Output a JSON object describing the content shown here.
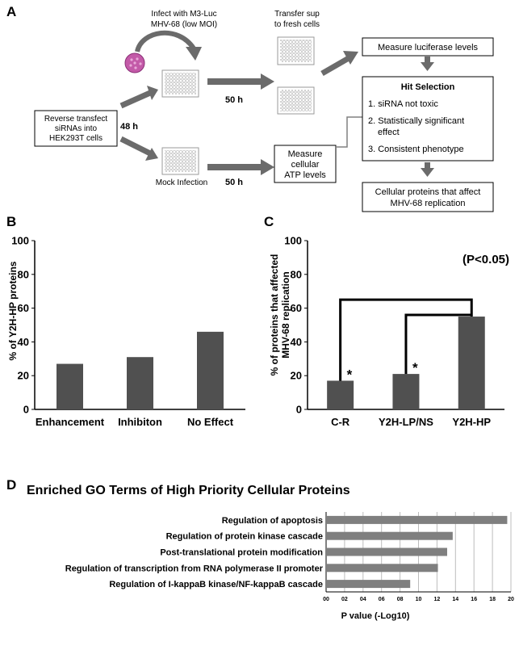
{
  "panel_labels": {
    "a": "A",
    "b": "B",
    "c": "C",
    "d": "D"
  },
  "workflow": {
    "infect_label_1": "Infect with M3-Luc",
    "infect_label_2": "MHV-68 (low MOI)",
    "transfer_label_1": "Transfer sup",
    "transfer_label_2": "to fresh cells",
    "reverse_1": "Reverse transfect",
    "reverse_2": "siRNAs into",
    "reverse_3": "HEK293T cells",
    "time_48h": "48 h",
    "time_50h_top": "50 h",
    "time_50h_bottom": "50 h",
    "mock_label": "Mock Infection",
    "atp_1": "Measure",
    "atp_2": "cellular",
    "atp_3": "ATP levels",
    "luciferase": "Measure luciferase levels",
    "hit_title": "Hit Selection",
    "hit_1": "1. siRNA not toxic",
    "hit_2a": "2. Statistically significant",
    "hit_2b": "effect",
    "hit_3": "3. Consistent phenotype",
    "result_1": "Cellular proteins that affect",
    "result_2": "MHV-68 replication"
  },
  "chart_data": [
    {
      "type": "bar",
      "panel": "B",
      "categories": [
        "Enhancement",
        "Inhibiton",
        "No Effect"
      ],
      "values": [
        27,
        31,
        46
      ],
      "ylabel": "% of Y2H-HP proteins",
      "ylim": [
        0,
        100
      ],
      "yticks": [
        0,
        20,
        40,
        60,
        80,
        100
      ],
      "color": "#505050",
      "grid": false
    },
    {
      "type": "bar",
      "panel": "C",
      "categories": [
        "C-R",
        "Y2H-LP/NS",
        "Y2H-HP"
      ],
      "values": [
        17,
        21,
        55
      ],
      "ylabel_1": "% of proteins that affected",
      "ylabel_2": "MHV-68 replication",
      "ylim": [
        0,
        100
      ],
      "yticks": [
        0,
        20,
        40,
        60,
        80,
        100
      ],
      "annotation": "(P<0.05)",
      "significance_marker": "*",
      "color": "#505050",
      "grid": false
    },
    {
      "type": "bar",
      "panel": "D",
      "orientation": "horizontal",
      "title": "Enriched GO Terms of High Priority Cellular Proteins",
      "categories": [
        "Regulation of apoptosis",
        "Regulation of protein kinase cascade",
        "Post-translational protein modification",
        "Regulation of transcription from RNA polymerase II promoter",
        "Regulation of I-kappaB kinase/NF-kappaB cascade"
      ],
      "values": [
        19.6,
        13.7,
        13.1,
        12.1,
        9.1
      ],
      "xlabel": "P value (-Log10)",
      "xlim": [
        0,
        20
      ],
      "xticks": [
        "00",
        "02",
        "04",
        "06",
        "08",
        "10",
        "12",
        "14",
        "16",
        "18",
        "20"
      ],
      "color": "#7f7f7f",
      "grid": true
    }
  ]
}
